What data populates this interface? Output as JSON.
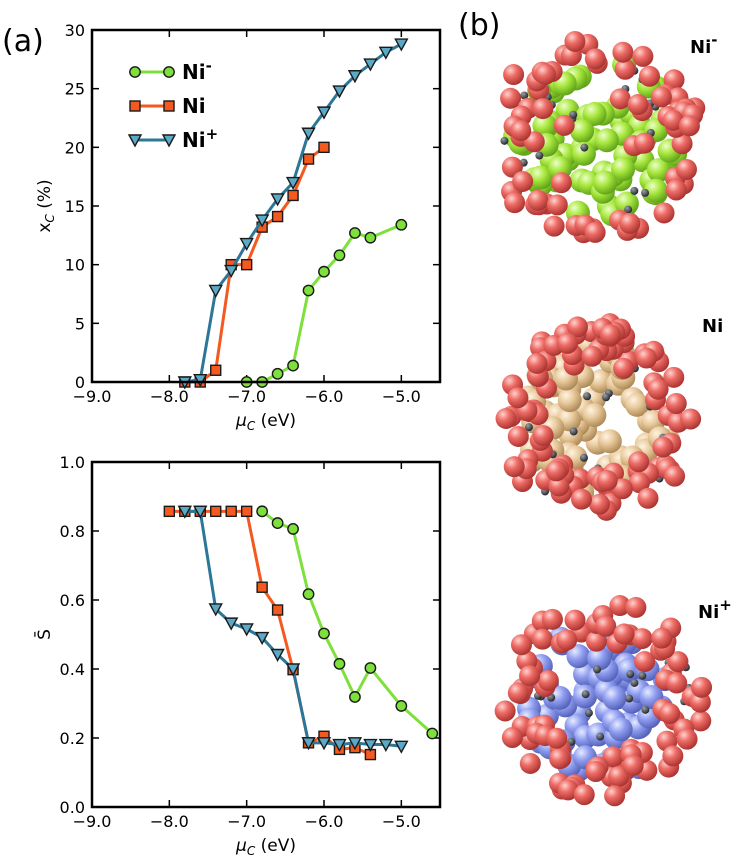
{
  "panel_labels": {
    "a": "(a)",
    "b": "(b)"
  },
  "colors": {
    "ni_minus": "#7ee03a",
    "ni": "#f4591f",
    "ni_plus": "#2c7797",
    "ni_plus_marker": "#5aa9c6",
    "oxygen": "#e8635d",
    "ni_minus_core": "#a6e63c",
    "ni_core": "#e7c89a",
    "ni_plus_core": "#8f9df0"
  },
  "particles": [
    {
      "label": "Ni",
      "sup": "-",
      "core_color_key": "ni_minus_core"
    },
    {
      "label": "Ni",
      "sup": "",
      "core_color_key": "ni_core"
    },
    {
      "label": "Ni",
      "sup": "+",
      "core_color_key": "ni_plus_core"
    }
  ],
  "chart_data": [
    {
      "type": "line",
      "panel": "top",
      "xlabel": "μ_C (eV)",
      "ylabel": "x_C (%)",
      "xlim": [
        -9.0,
        -4.5
      ],
      "ylim": [
        0,
        30
      ],
      "xticks": [
        -9.0,
        -8.0,
        -7.0,
        -6.0,
        -5.0
      ],
      "xtick_labels": [
        "−9.0",
        "−8.0",
        "−7.0",
        "−6.0",
        "−5.0"
      ],
      "yticks": [
        0,
        5,
        10,
        15,
        20,
        25,
        30
      ],
      "ytick_labels": [
        "0",
        "5",
        "10",
        "15",
        "20",
        "25",
        "30"
      ],
      "legend": {
        "position": "top-left",
        "entries": [
          {
            "label": "Ni",
            "sup": "-",
            "series": "Ni-"
          },
          {
            "label": "Ni",
            "sup": "",
            "series": "Ni"
          },
          {
            "label": "Ni",
            "sup": "+",
            "series": "Ni+"
          }
        ]
      },
      "series": [
        {
          "name": "Ni-",
          "marker": "circle",
          "color_key": "ni_minus",
          "x": [
            -7.0,
            -6.8,
            -6.6,
            -6.4,
            -6.2,
            -6.0,
            -5.8,
            -5.6,
            -5.4,
            -5.0
          ],
          "y": [
            0,
            0,
            0.7,
            1.4,
            7.8,
            9.4,
            10.8,
            12.7,
            12.3,
            13.4
          ]
        },
        {
          "name": "Ni",
          "marker": "square",
          "color_key": "ni",
          "x": [
            -7.8,
            -7.6,
            -7.4,
            -7.2,
            -7.0,
            -6.8,
            -6.6,
            -6.4,
            -6.2,
            -6.0
          ],
          "y": [
            0,
            0,
            1,
            10,
            10,
            13.2,
            14.1,
            15.9,
            19,
            20
          ]
        },
        {
          "name": "Ni+",
          "marker": "triangle-down",
          "color_key": "ni_plus",
          "x": [
            -7.8,
            -7.6,
            -7.4,
            -7.2,
            -7.0,
            -6.8,
            -6.6,
            -6.4,
            -6.2,
            -6.0,
            -5.8,
            -5.6,
            -5.4,
            -5.2,
            -5.0
          ],
          "y": [
            0,
            0.2,
            7.8,
            9.5,
            11.8,
            13.8,
            15.6,
            17.0,
            21.2,
            23.0,
            24.8,
            26.1,
            27.1,
            28.1,
            28.8
          ]
        }
      ]
    },
    {
      "type": "line",
      "panel": "bottom",
      "xlabel": "μ_C (eV)",
      "ylabel": "S̄",
      "xlim": [
        -9.0,
        -4.5
      ],
      "ylim": [
        0.0,
        1.0
      ],
      "xticks": [
        -9.0,
        -8.0,
        -7.0,
        -6.0,
        -5.0
      ],
      "xtick_labels": [
        "−9.0",
        "−8.0",
        "−7.0",
        "−6.0",
        "−5.0"
      ],
      "yticks": [
        0.0,
        0.2,
        0.4,
        0.6,
        0.8,
        1.0
      ],
      "ytick_labels": [
        "0.0",
        "0.2",
        "0.4",
        "0.6",
        "0.8",
        "1.0"
      ],
      "series": [
        {
          "name": "Ni-",
          "marker": "circle",
          "color_key": "ni_minus",
          "x": [
            -6.8,
            -6.6,
            -6.4,
            -6.2,
            -6.0,
            -5.8,
            -5.6,
            -5.4,
            -5.0,
            -4.6
          ],
          "y": [
            0.857,
            0.823,
            0.806,
            0.617,
            0.503,
            0.415,
            0.319,
            0.403,
            0.293,
            0.213
          ]
        },
        {
          "name": "Ni",
          "marker": "square",
          "color_key": "ni",
          "x": [
            -8.0,
            -7.8,
            -7.6,
            -7.4,
            -7.2,
            -7.0,
            -6.8,
            -6.6,
            -6.4,
            -6.2,
            -6.0,
            -5.8,
            -5.6,
            -5.4
          ],
          "y": [
            0.857,
            0.857,
            0.857,
            0.857,
            0.857,
            0.857,
            0.637,
            0.571,
            0.398,
            0.186,
            0.205,
            0.167,
            0.172,
            0.152
          ]
        },
        {
          "name": "Ni+",
          "marker": "triangle-down",
          "color_key": "ni_plus",
          "x": [
            -7.8,
            -7.6,
            -7.4,
            -7.2,
            -7.0,
            -6.8,
            -6.6,
            -6.4,
            -6.2,
            -6.0,
            -5.8,
            -5.6,
            -5.4,
            -5.2,
            -5.0
          ],
          "y": [
            0.857,
            0.857,
            0.574,
            0.533,
            0.516,
            0.491,
            0.442,
            0.4,
            0.186,
            0.186,
            0.181,
            0.186,
            0.181,
            0.181,
            0.176
          ]
        }
      ]
    }
  ]
}
